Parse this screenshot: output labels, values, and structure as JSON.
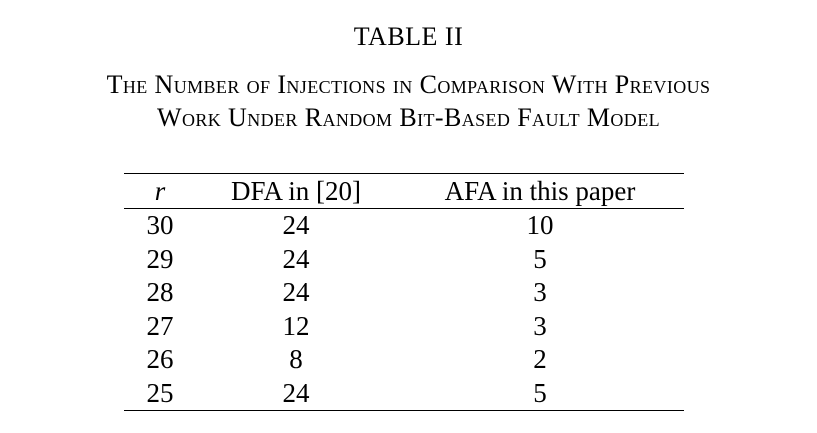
{
  "table_label": "TABLE II",
  "caption": {
    "line1": "The Number of Injections in Comparison With Previous",
    "line2": "Work Under Random Bit-Based Fault Model"
  },
  "table": {
    "headers": [
      "r",
      "DFA in [20]",
      "AFA in this paper"
    ],
    "rows": [
      [
        "30",
        "24",
        "10"
      ],
      [
        "29",
        "24",
        "5"
      ],
      [
        "28",
        "24",
        "3"
      ],
      [
        "27",
        "12",
        "3"
      ],
      [
        "26",
        "8",
        "2"
      ],
      [
        "25",
        "24",
        "5"
      ]
    ]
  }
}
